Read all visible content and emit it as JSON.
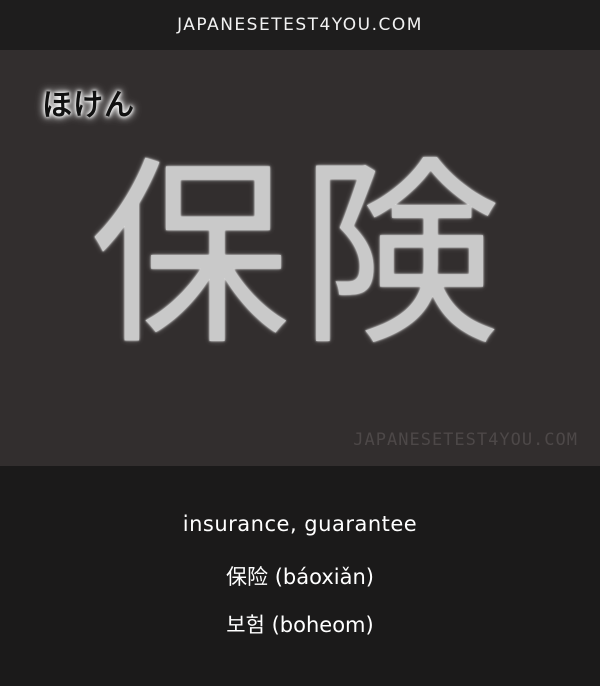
{
  "header": {
    "site": "JAPANESETEST4YOU.COM"
  },
  "card": {
    "reading": "ほけん",
    "kanji": "保険",
    "watermark": "JAPANESETEST4YOU.COM"
  },
  "info": {
    "meaning": "insurance, guarantee",
    "chinese": "保险 (báoxiǎn)",
    "korean": "보험 (boheom)"
  }
}
